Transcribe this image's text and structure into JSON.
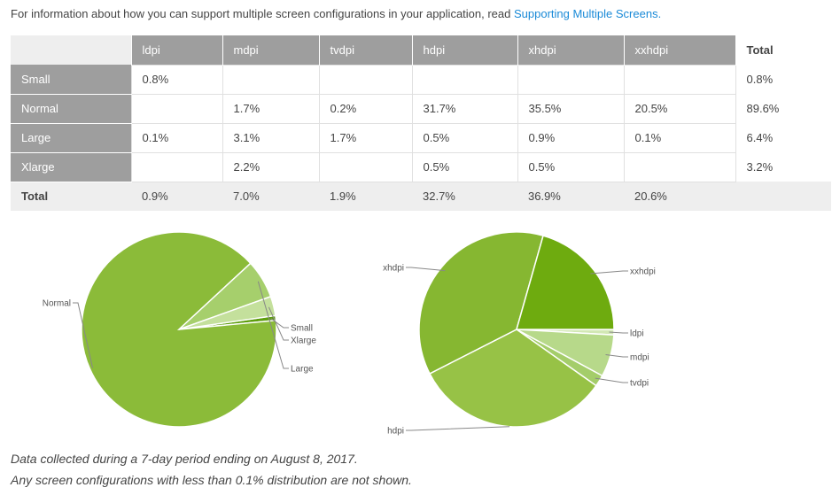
{
  "intro": {
    "text": "For information about how you can support multiple screen configurations in your application, read ",
    "link_text": "Supporting Multiple Screens."
  },
  "table": {
    "columns": [
      "ldpi",
      "mdpi",
      "tvdpi",
      "hdpi",
      "xhdpi",
      "xxhdpi"
    ],
    "total_label": "Total",
    "rows": [
      {
        "label": "Small",
        "cells": [
          "0.8%",
          "",
          "",
          "",
          "",
          ""
        ],
        "total": "0.8%"
      },
      {
        "label": "Normal",
        "cells": [
          "",
          "1.7%",
          "0.2%",
          "31.7%",
          "35.5%",
          "20.5%"
        ],
        "total": "89.6%"
      },
      {
        "label": "Large",
        "cells": [
          "0.1%",
          "3.1%",
          "1.7%",
          "0.5%",
          "0.9%",
          "0.1%"
        ],
        "total": "6.4%"
      },
      {
        "label": "Xlarge",
        "cells": [
          "",
          "2.2%",
          "",
          "0.5%",
          "0.5%",
          ""
        ],
        "total": "3.2%"
      }
    ],
    "totals": [
      "0.9%",
      "7.0%",
      "1.9%",
      "32.7%",
      "36.9%",
      "20.6%"
    ]
  },
  "chart_data": [
    {
      "type": "pie",
      "title": "",
      "labels": [
        "Small",
        "Normal",
        "Large",
        "Xlarge"
      ],
      "values": [
        0.8,
        89.6,
        6.4,
        3.2
      ],
      "colors": [
        "#5e9e0e",
        "#8bbb39",
        "#a6cf6c",
        "#c4e09c"
      ]
    },
    {
      "type": "pie",
      "title": "",
      "labels": [
        "ldpi",
        "mdpi",
        "tvdpi",
        "hdpi",
        "xhdpi",
        "xxhdpi"
      ],
      "values": [
        0.9,
        7.0,
        1.9,
        32.7,
        36.9,
        20.6
      ],
      "colors": [
        "#d2e8b4",
        "#b7d98a",
        "#a4cd6a",
        "#97c246",
        "#86b731",
        "#6eab0f"
      ]
    }
  ],
  "notes": {
    "line1": "Data collected during a 7-day period ending on August 8, 2017.",
    "line2": "Any screen configurations with less than 0.1% distribution are not shown."
  }
}
